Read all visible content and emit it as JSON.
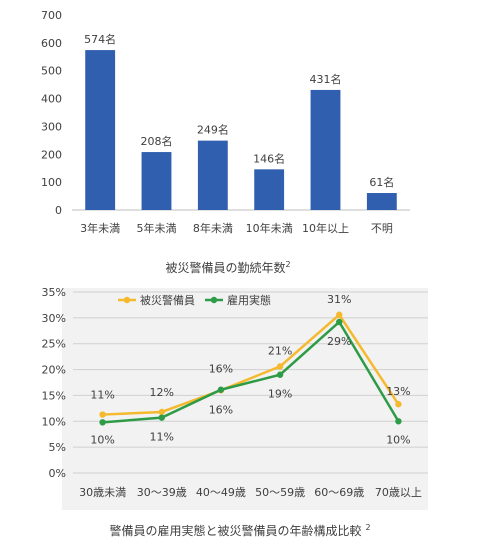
{
  "chart_data": [
    {
      "type": "bar",
      "categories": [
        "3年未満",
        "5年未満",
        "8年未満",
        "10年未満",
        "10年以上",
        "不明"
      ],
      "values": [
        574,
        208,
        249,
        146,
        431,
        61
      ],
      "data_labels": [
        "574名",
        "208名",
        "249名",
        "146名",
        "431名",
        "61名"
      ],
      "ylim": [
        0,
        700
      ],
      "yticks": [
        "0",
        "100",
        "200",
        "300",
        "400",
        "500",
        "600",
        "700"
      ],
      "caption": "被災警備員の勤続年数",
      "caption_sup": "2",
      "bar_color": "#2f5fae",
      "grid": false
    },
    {
      "type": "line",
      "categories": [
        "30歳未満",
        "30～39歳",
        "40～49歳",
        "50～59歳",
        "60～69歳",
        "70歳以上"
      ],
      "ylim": [
        0,
        35
      ],
      "yticks": [
        "0%",
        "5%",
        "10%",
        "15%",
        "20%",
        "25%",
        "30%",
        "35%"
      ],
      "grid": true,
      "legend_position": "top-left",
      "series": [
        {
          "name": "被災警備員",
          "values": [
            11.3,
            11.8,
            16.0,
            20.6,
            30.6,
            13.3
          ],
          "labels": [
            "11%",
            "12%",
            "16%",
            "21%",
            "31%",
            "13%"
          ],
          "color": "#f5b92e"
        },
        {
          "name": "雇用実態",
          "values": [
            9.8,
            10.7,
            16.1,
            19.0,
            29.2,
            10.0
          ],
          "labels": [
            "10%",
            "11%",
            "16%",
            "19%",
            "29%",
            "10%"
          ],
          "color": "#2e9b46"
        }
      ],
      "caption": "警備員の雇用実態と被災警備員の年齢構成比較",
      "caption_sup": "2"
    }
  ]
}
